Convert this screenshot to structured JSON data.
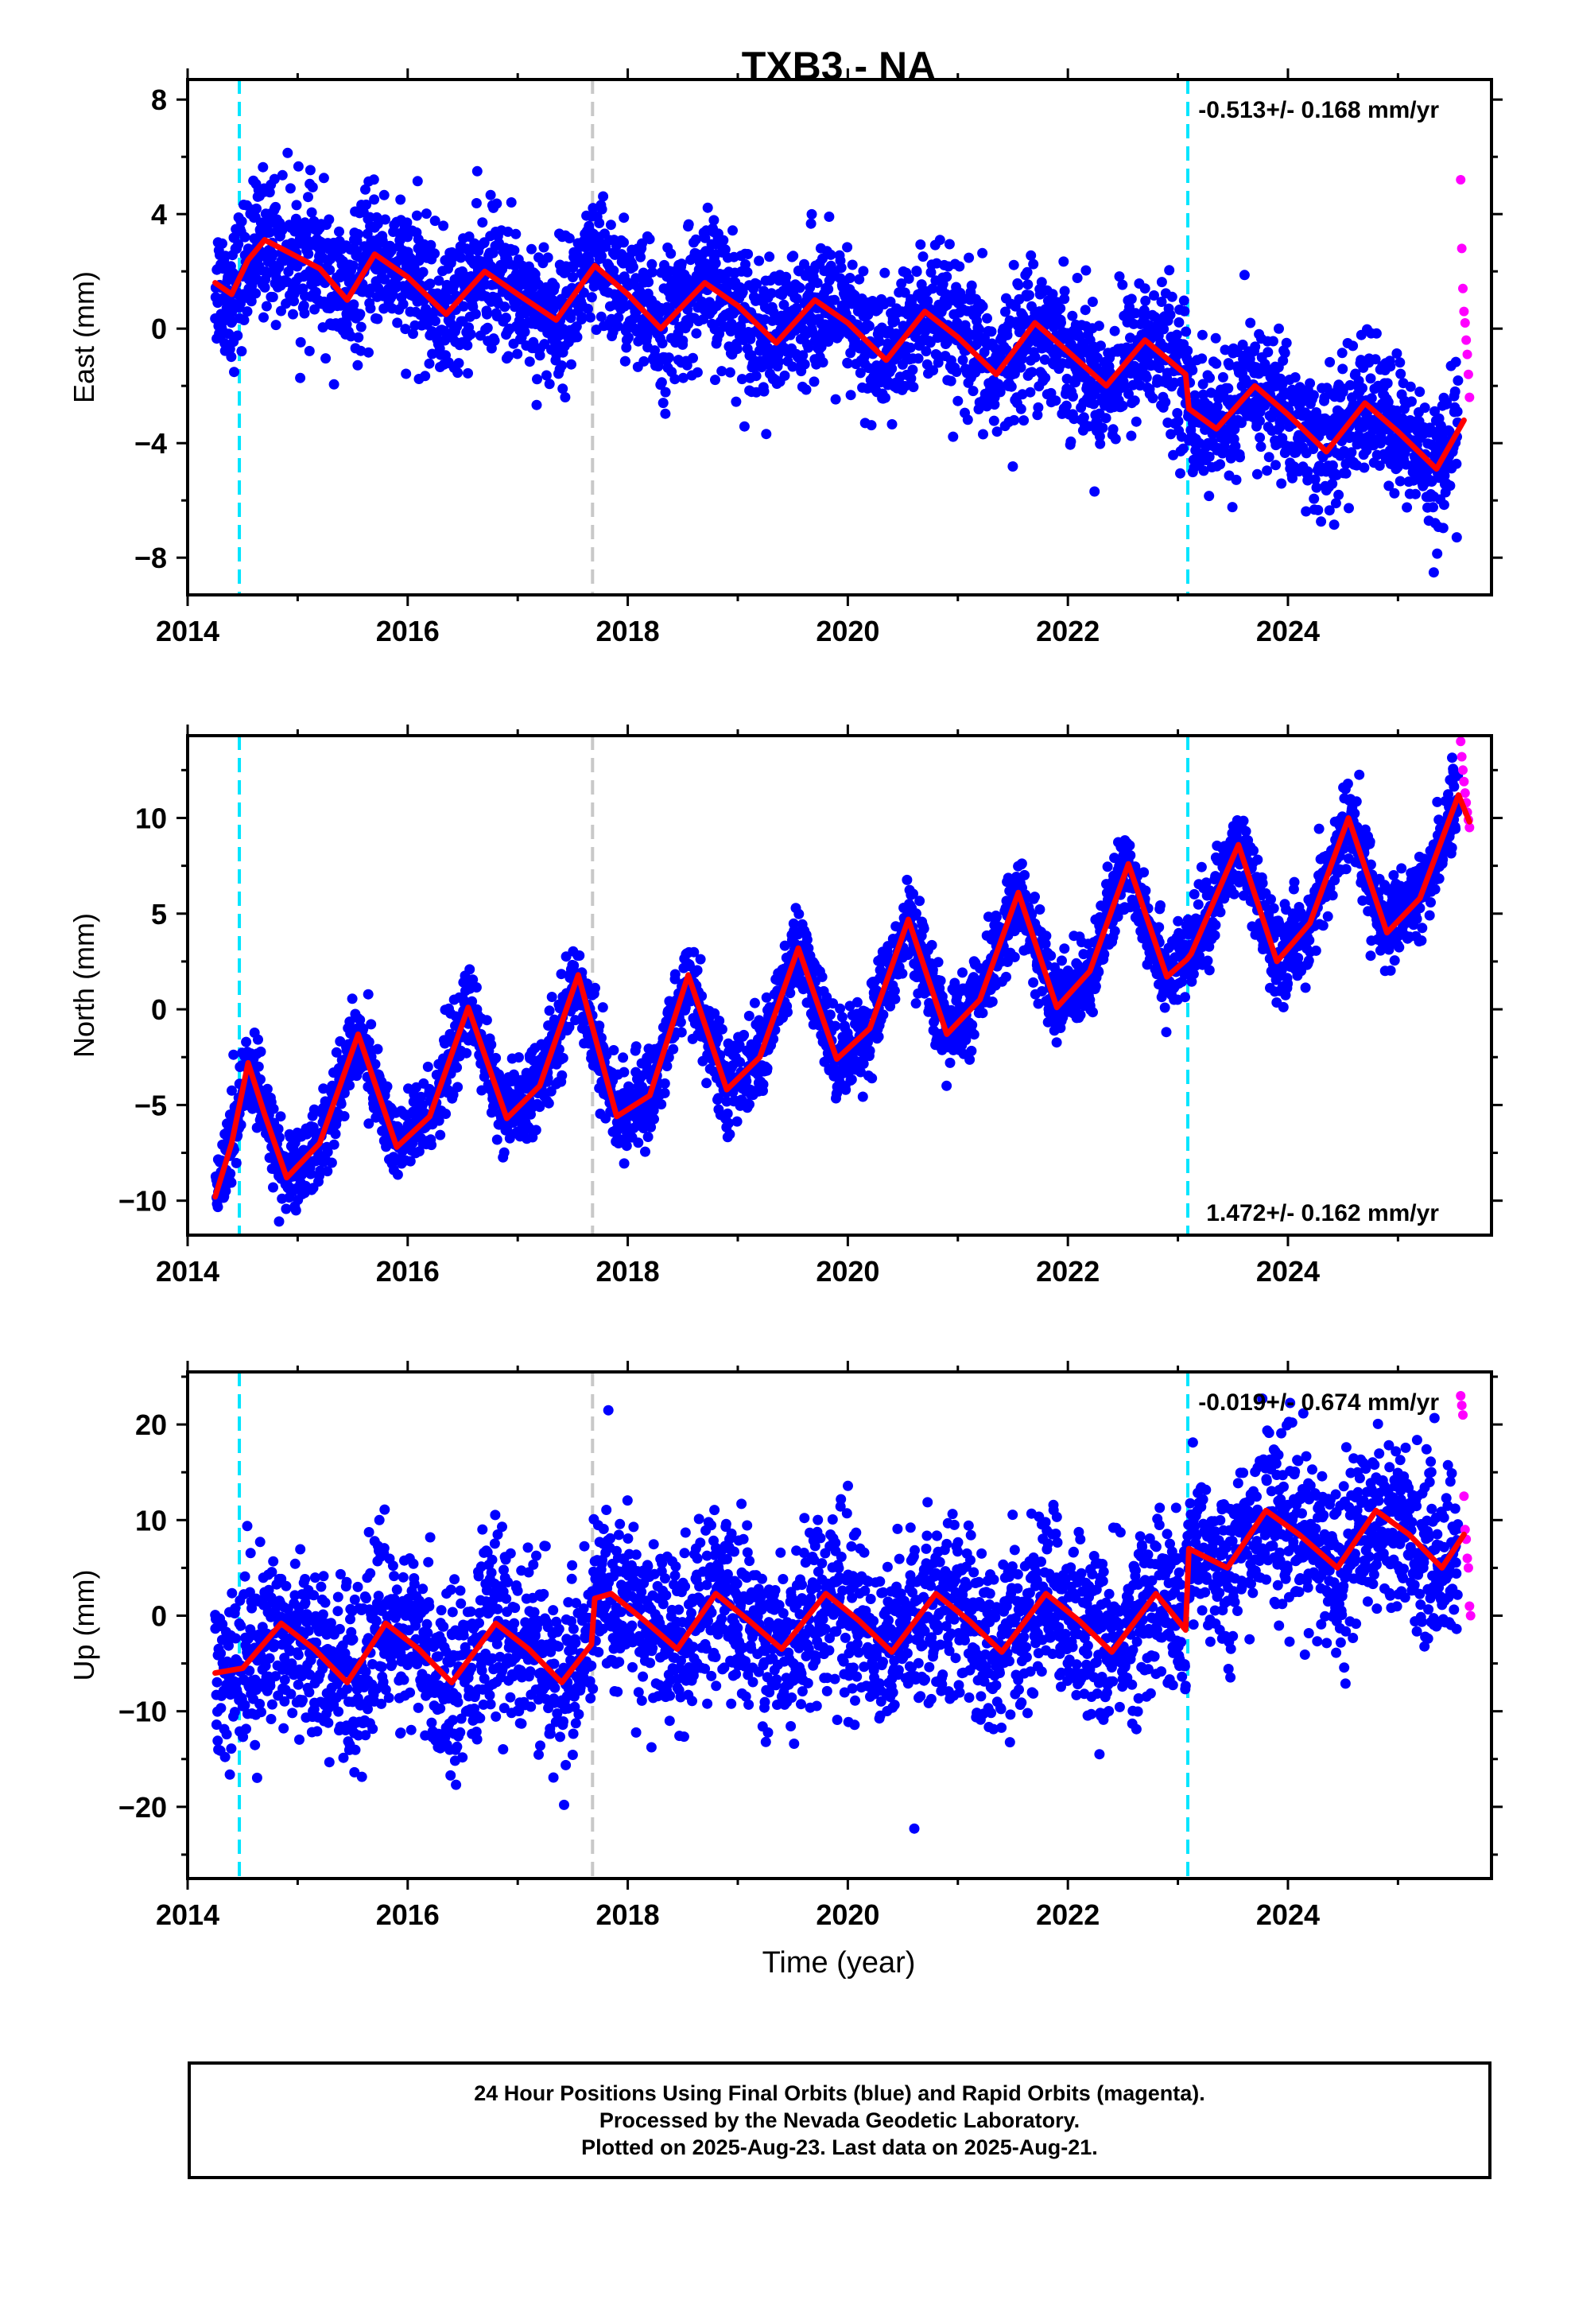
{
  "title": "TXB3 - NA",
  "xlabel": "Time (year)",
  "xticks": [
    2014,
    2016,
    2018,
    2020,
    2022,
    2024
  ],
  "footer": {
    "line1": "24 Hour Positions Using Final Orbits (blue) and Rapid Orbits (magenta).",
    "line2": "Processed by the Nevada Geodetic Laboratory.",
    "line3": "Plotted on 2025-Aug-23. Last data on 2025-Aug-21."
  },
  "colors": {
    "final": "#0000ff",
    "rapid": "#ff00ff",
    "model": "#ff0000",
    "equipment_change": "#00e5ff",
    "other_event": "#c8c8c8"
  },
  "chart_data": [
    {
      "type": "scatter",
      "component": "East",
      "ylabel": "East (mm)",
      "xlim": [
        2014.0,
        2025.85
      ],
      "ylim": [
        -9.3,
        8.7
      ],
      "yticks": [
        -8,
        -4,
        0,
        4,
        8
      ],
      "rate_label": "-0.513+/- 0.168 mm/yr",
      "rate_position": "top-right",
      "events": [
        {
          "x": 2014.47,
          "kind": "equipment_change"
        },
        {
          "x": 2017.68,
          "kind": "other_event"
        },
        {
          "x": 2023.09,
          "kind": "equipment_change"
        }
      ],
      "model_x": [
        2014.25,
        2014.4,
        2014.55,
        2014.7,
        2014.85,
        2015.0,
        2015.2,
        2015.45,
        2015.7,
        2016.0,
        2016.35,
        2016.7,
        2017.0,
        2017.35,
        2017.7,
        2018.0,
        2018.3,
        2018.7,
        2019.0,
        2019.35,
        2019.7,
        2020.0,
        2020.35,
        2020.7,
        2021.0,
        2021.35,
        2021.7,
        2022.0,
        2022.35,
        2022.7,
        2023.07,
        2023.1,
        2023.35,
        2023.7,
        2024.0,
        2024.35,
        2024.7,
        2025.0,
        2025.35,
        2025.6
      ],
      "model_y": [
        1.6,
        1.2,
        2.4,
        3.1,
        2.8,
        2.5,
        2.1,
        1.0,
        2.6,
        1.8,
        0.5,
        2.0,
        1.2,
        0.3,
        2.2,
        1.2,
        0.0,
        1.6,
        0.8,
        -0.5,
        1.0,
        0.2,
        -1.1,
        0.6,
        -0.3,
        -1.6,
        0.2,
        -0.8,
        -2.0,
        -0.4,
        -1.6,
        -2.8,
        -3.5,
        -2.0,
        -3.0,
        -4.3,
        -2.6,
        -3.6,
        -4.9,
        -3.2
      ],
      "x_range": [
        2014.25,
        2025.55
      ],
      "trend_start": 1.6,
      "trend_rate": -0.513,
      "seasonal_amp": 1.2,
      "seasonal_phase": 0.6,
      "scatter": 1.2,
      "n_points": 3400,
      "offsets": [
        {
          "x": 2023.09,
          "dy": -1.2
        }
      ],
      "rapid_x": [
        2025.57,
        2025.58,
        2025.59,
        2025.6,
        2025.61,
        2025.62,
        2025.63,
        2025.64,
        2025.65
      ],
      "rapid_y": [
        5.2,
        2.8,
        1.4,
        0.6,
        0.2,
        -0.4,
        -0.9,
        -1.6,
        -2.4
      ]
    },
    {
      "type": "scatter",
      "component": "North",
      "ylabel": "North (mm)",
      "xlim": [
        2014.0,
        2025.85
      ],
      "ylim": [
        -11.8,
        14.3
      ],
      "yticks": [
        -10,
        -5,
        0,
        5,
        10
      ],
      "rate_label": "1.472+/- 0.162 mm/yr",
      "rate_position": "bottom-right",
      "events": [
        {
          "x": 2014.47,
          "kind": "equipment_change"
        },
        {
          "x": 2017.68,
          "kind": "other_event"
        },
        {
          "x": 2023.09,
          "kind": "equipment_change"
        }
      ],
      "model_x": [
        2014.25,
        2014.4,
        2014.55,
        2014.7,
        2014.9,
        2015.2,
        2015.55,
        2015.9,
        2016.2,
        2016.55,
        2016.9,
        2017.2,
        2017.55,
        2017.9,
        2018.2,
        2018.55,
        2018.9,
        2019.2,
        2019.55,
        2019.9,
        2020.2,
        2020.55,
        2020.9,
        2021.2,
        2021.55,
        2021.9,
        2022.2,
        2022.55,
        2022.9,
        2023.08,
        2023.12,
        2023.55,
        2023.9,
        2024.2,
        2024.55,
        2024.9,
        2025.2,
        2025.55,
        2025.65
      ],
      "model_y": [
        -9.8,
        -7.0,
        -2.8,
        -5.5,
        -8.8,
        -7.0,
        -1.3,
        -7.2,
        -5.6,
        0.1,
        -5.7,
        -4.0,
        1.8,
        -5.6,
        -4.5,
        1.8,
        -4.2,
        -2.5,
        3.2,
        -2.6,
        -1.0,
        4.7,
        -1.3,
        0.5,
        6.1,
        0.1,
        2.0,
        7.6,
        1.7,
        2.6,
        2.9,
        8.6,
        2.5,
        4.5,
        10.0,
        4.0,
        5.8,
        11.2,
        9.8
      ],
      "x_range": [
        2014.25,
        2025.55
      ],
      "trend_start": -7.0,
      "trend_rate": 1.472,
      "seasonal_amp": 3.8,
      "seasonal_phase": 0.55,
      "scatter": 1.1,
      "n_points": 3400,
      "offsets": [],
      "rapid_x": [
        2025.57,
        2025.58,
        2025.59,
        2025.6,
        2025.61,
        2025.62,
        2025.63,
        2025.64,
        2025.65
      ],
      "rapid_y": [
        14.0,
        13.2,
        12.5,
        11.9,
        11.3,
        10.8,
        10.3,
        9.9,
        9.5
      ]
    },
    {
      "type": "scatter",
      "component": "Up",
      "ylabel": "Up (mm)",
      "xlim": [
        2014.0,
        2025.85
      ],
      "ylim": [
        -27.5,
        25.5
      ],
      "yticks": [
        -20,
        -10,
        0,
        10,
        20
      ],
      "rate_label": "-0.019+/- 0.674 mm/yr",
      "rate_position": "top-right",
      "events": [
        {
          "x": 2014.47,
          "kind": "equipment_change"
        },
        {
          "x": 2017.68,
          "kind": "other_event"
        },
        {
          "x": 2023.09,
          "kind": "equipment_change"
        }
      ],
      "model_x": [
        2014.25,
        2014.5,
        2014.85,
        2015.15,
        2015.45,
        2015.8,
        2016.1,
        2016.4,
        2016.8,
        2017.1,
        2017.4,
        2017.67,
        2017.7,
        2017.85,
        2018.15,
        2018.45,
        2018.8,
        2019.1,
        2019.4,
        2019.8,
        2020.1,
        2020.4,
        2020.8,
        2021.1,
        2021.4,
        2021.8,
        2022.1,
        2022.4,
        2022.8,
        2023.07,
        2023.1,
        2023.45,
        2023.8,
        2024.1,
        2024.45,
        2024.8,
        2025.1,
        2025.4,
        2025.6
      ],
      "model_y": [
        -6.0,
        -5.5,
        -0.8,
        -3.5,
        -7.0,
        -0.8,
        -3.5,
        -7.0,
        -0.8,
        -3.5,
        -7.0,
        -3.0,
        1.8,
        2.3,
        -0.5,
        -3.5,
        2.3,
        -0.5,
        -3.5,
        2.3,
        -0.5,
        -3.8,
        2.3,
        -0.5,
        -3.8,
        2.3,
        -0.5,
        -3.8,
        2.3,
        -1.5,
        7.0,
        5.0,
        11.0,
        8.5,
        5.0,
        11.0,
        8.5,
        5.0,
        8.5
      ],
      "x_range": [
        2014.25,
        2025.55
      ],
      "trend_start": -3.2,
      "trend_rate": 0.0,
      "seasonal_amp": 3.0,
      "seasonal_phase": 0.85,
      "scatter": 4.5,
      "n_points": 3400,
      "offsets": [
        {
          "x": 2017.69,
          "dy": 5.5
        },
        {
          "x": 2023.09,
          "dy": 6.5
        }
      ],
      "rapid_x": [
        2025.57,
        2025.58,
        2025.59,
        2025.6,
        2025.61,
        2025.62,
        2025.63,
        2025.64,
        2025.65,
        2025.66
      ],
      "rapid_y": [
        23.0,
        22.0,
        21.0,
        12.5,
        9.0,
        8.0,
        6.0,
        5.0,
        1.0,
        0.0
      ]
    }
  ]
}
